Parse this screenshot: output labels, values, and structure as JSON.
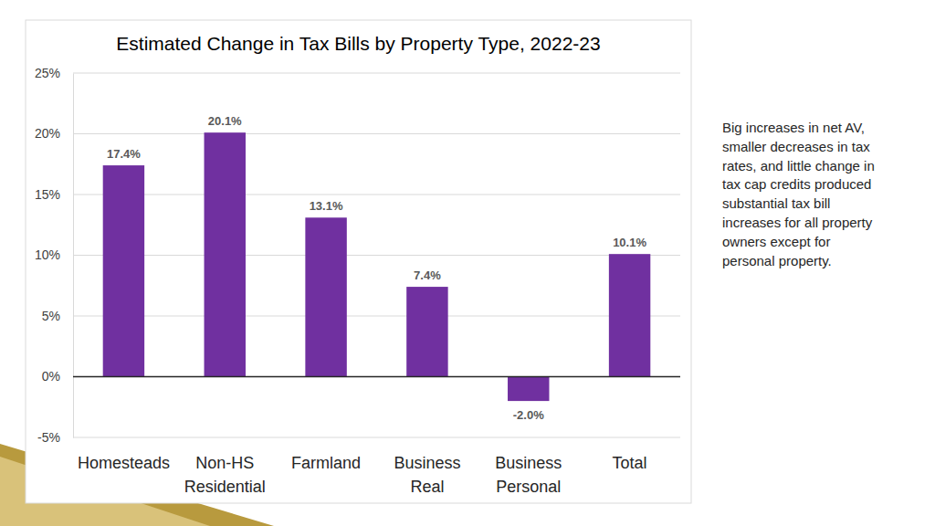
{
  "chart_data": {
    "type": "bar",
    "title": "Estimated Change in Tax Bills by Property Type, 2022-23",
    "categories": [
      "Homesteads",
      "Non-HS Residential",
      "Farmland",
      "Business Real",
      "Business Personal",
      "Total"
    ],
    "values": [
      17.4,
      20.1,
      13.1,
      7.4,
      -2.0,
      10.1
    ],
    "value_labels": [
      "17.4%",
      "20.1%",
      "13.1%",
      "7.4%",
      "-2.0%",
      "10.1%"
    ],
    "color": "#7030a0",
    "ylim": [
      -5,
      25
    ],
    "yticks": [
      {
        "value": -5,
        "label": "-5%"
      },
      {
        "value": 0,
        "label": "0%"
      },
      {
        "value": 5,
        "label": "5%"
      },
      {
        "value": 10,
        "label": "10%"
      },
      {
        "value": 15,
        "label": "15%"
      },
      {
        "value": 20,
        "label": "20%"
      },
      {
        "value": 25,
        "label": "25%"
      }
    ],
    "grid": true,
    "data_labels": true,
    "annotation": [
      "Big increases in net AV,",
      "smaller decreases in tax",
      "rates, and little change in",
      "tax cap credits produced",
      "substantial tax bill",
      "increases for all property",
      "owners except for",
      "personal property."
    ]
  }
}
